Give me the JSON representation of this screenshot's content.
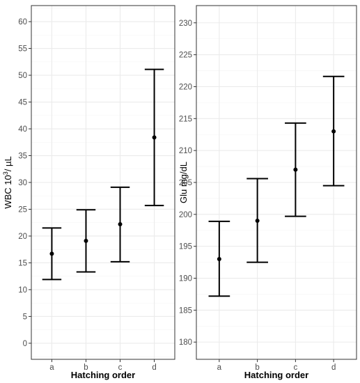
{
  "colors": {
    "panel_border": "#333333",
    "grid_major": "#ebebeb",
    "grid_minor": "#f5f5f5",
    "error_bar": "#000000",
    "point": "#000000"
  },
  "chart_data": [
    {
      "type": "errorbar",
      "xlabel": "Hatching order",
      "ylabel_main": "WBC 10",
      "ylabel_sup": "3",
      "ylabel_tail": "/ µL",
      "ylim": [
        -3,
        63
      ],
      "yticks": [
        0,
        5,
        10,
        15,
        20,
        25,
        30,
        35,
        40,
        45,
        50,
        55,
        60
      ],
      "ytick_labels": [
        "0",
        "5",
        "10",
        "15",
        "20",
        "25",
        "30",
        "35",
        "40",
        "45",
        "50",
        "55",
        "60"
      ],
      "grid": true,
      "categories": [
        "a",
        "b",
        "c",
        "d"
      ],
      "series": [
        {
          "mean": [
            16.7,
            19.1,
            22.2,
            38.4
          ],
          "lower": [
            11.9,
            13.3,
            15.2,
            25.7
          ],
          "upper": [
            21.5,
            24.9,
            29.1,
            51.1
          ]
        }
      ]
    },
    {
      "type": "errorbar",
      "xlabel": "Hatching order",
      "ylabel_main": "Glu mg/dL",
      "ylabel_sup": "",
      "ylabel_tail": "",
      "ylim": [
        177.3,
        232.7
      ],
      "yticks": [
        180,
        185,
        190,
        195,
        200,
        205,
        210,
        215,
        220,
        225,
        230
      ],
      "ytick_labels": [
        "180",
        "185",
        "190",
        "195",
        "200",
        "205",
        "210",
        "215",
        "220",
        "225",
        "230"
      ],
      "grid": true,
      "categories": [
        "a",
        "b",
        "c",
        "d"
      ],
      "series": [
        {
          "mean": [
            193.0,
            199.0,
            207.0,
            213.0
          ],
          "lower": [
            187.2,
            192.5,
            199.7,
            204.5
          ],
          "upper": [
            198.9,
            205.6,
            214.3,
            221.6
          ]
        }
      ]
    }
  ]
}
